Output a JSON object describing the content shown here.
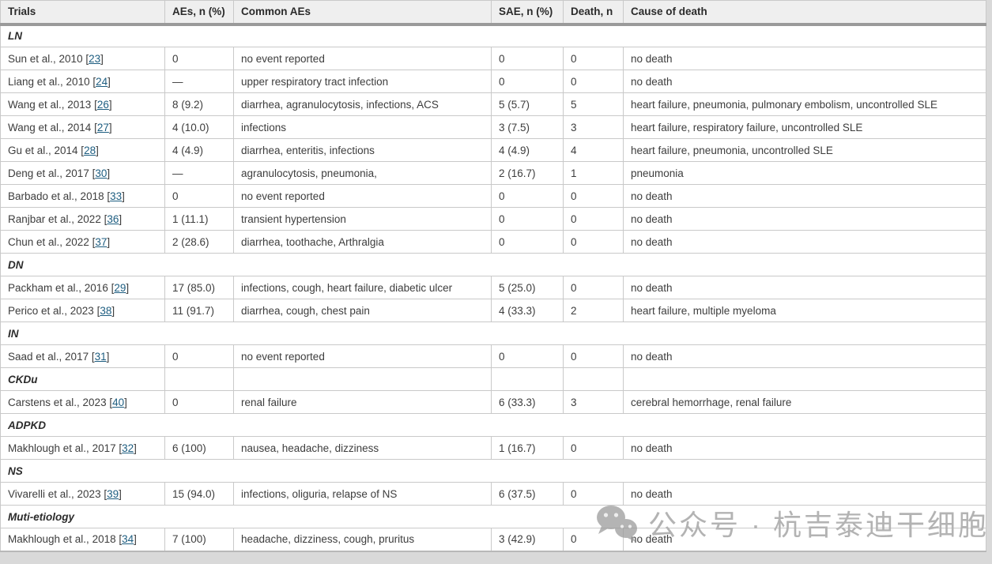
{
  "table": {
    "columns": [
      "Trials",
      "AEs, n (%)",
      "Common AEs",
      "SAE, n (%)",
      "Death, n",
      "Cause of death"
    ],
    "rows": [
      {
        "type": "group",
        "label": "LN"
      },
      {
        "type": "data",
        "trial": "Sun et al., 2010",
        "ref": "23",
        "aes": "0",
        "common": "no event reported",
        "sae": "0",
        "death": "0",
        "cause": "no death"
      },
      {
        "type": "data",
        "trial": "Liang et al., 2010",
        "ref": "24",
        "aes": "—",
        "common": "upper respiratory tract infection",
        "sae": "0",
        "death": "0",
        "cause": "no death"
      },
      {
        "type": "data",
        "trial": "Wang et al., 2013",
        "ref": "26",
        "aes": "8 (9.2)",
        "common": "diarrhea, agranulocytosis, infections, ACS",
        "sae": "5 (5.7)",
        "death": "5",
        "cause": "heart failure, pneumonia, pulmonary embolism, uncontrolled SLE"
      },
      {
        "type": "data",
        "trial": "Wang et al., 2014",
        "ref": "27",
        "aes": "4 (10.0)",
        "common": "infections",
        "sae": "3 (7.5)",
        "death": "3",
        "cause": "heart failure, respiratory failure, uncontrolled SLE"
      },
      {
        "type": "data",
        "trial": "Gu et al., 2014",
        "ref": "28",
        "aes": "4 (4.9)",
        "common": "diarrhea, enteritis, infections",
        "sae": "4 (4.9)",
        "death": "4",
        "cause": "heart failure, pneumonia, uncontrolled SLE"
      },
      {
        "type": "data",
        "trial": "Deng et al., 2017",
        "ref": "30",
        "aes": "—",
        "common": "agranulocytosis, pneumonia,",
        "sae": "2 (16.7)",
        "death": "1",
        "cause": "pneumonia"
      },
      {
        "type": "data",
        "trial": "Barbado et al., 2018",
        "ref": "33",
        "aes": "0",
        "common": "no event reported",
        "sae": "0",
        "death": "0",
        "cause": "no death"
      },
      {
        "type": "data",
        "trial": "Ranjbar et al., 2022",
        "ref": "36",
        "aes": "1 (11.1)",
        "common": "transient hypertension",
        "sae": "0",
        "death": "0",
        "cause": "no death"
      },
      {
        "type": "data",
        "trial": "Chun et al., 2022",
        "ref": "37",
        "aes": "2 (28.6)",
        "common": "diarrhea, toothache, Arthralgia",
        "sae": "0",
        "death": "0",
        "cause": "no death"
      },
      {
        "type": "group",
        "label": "DN"
      },
      {
        "type": "data",
        "trial": "Packham et al., 2016",
        "ref": "29",
        "aes": "17 (85.0)",
        "common": "infections, cough, heart failure, diabetic ulcer",
        "sae": "5 (25.0)",
        "death": "0",
        "cause": "no death"
      },
      {
        "type": "data",
        "trial": "Perico et al., 2023",
        "ref": "38",
        "aes": "11 (91.7)",
        "common": "diarrhea, cough, chest pain",
        "sae": "4 (33.3)",
        "death": "2",
        "cause": "heart failure, multiple myeloma"
      },
      {
        "type": "group",
        "label": "IN"
      },
      {
        "type": "data",
        "trial": "Saad et al., 2017",
        "ref": "31",
        "aes": "0",
        "common": "no event reported",
        "sae": "0",
        "death": "0",
        "cause": "no death"
      },
      {
        "type": "group-cells",
        "label": "CKDu"
      },
      {
        "type": "data",
        "trial": "Carstens et al., 2023",
        "ref": "40",
        "aes": "0",
        "common": "renal failure",
        "sae": "6 (33.3)",
        "death": "3",
        "cause": "cerebral hemorrhage, renal failure"
      },
      {
        "type": "group",
        "label": "ADPKD"
      },
      {
        "type": "data",
        "trial": "Makhlough et al., 2017",
        "ref": "32",
        "aes": "6 (100)",
        "common": "nausea, headache, dizziness",
        "sae": "1 (16.7)",
        "death": "0",
        "cause": "no death"
      },
      {
        "type": "group",
        "label": "NS"
      },
      {
        "type": "data",
        "trial": "Vivarelli et al., 2023",
        "ref": "39",
        "aes": "15 (94.0)",
        "common": "infections, oliguria, relapse of NS",
        "sae": "6 (37.5)",
        "death": "0",
        "cause": "no death"
      },
      {
        "type": "group",
        "label": "Muti-etiology"
      },
      {
        "type": "data",
        "trial": "Makhlough et al., 2018",
        "ref": "34",
        "aes": "7 (100)",
        "common": "headache, dizziness, cough, pruritus",
        "sae": "3 (42.9)",
        "death": "0",
        "cause": "no death"
      }
    ]
  },
  "watermark": {
    "icon": "wechat-icon",
    "text": "公众号 · 杭吉泰迪干细胞"
  },
  "colors": {
    "link": "#1d5d80",
    "header_bg": "#efefef",
    "header_rule": "#9a9a9a",
    "grid_line": "#c9c9c9",
    "body_text": "#3d3d3d",
    "watermark_gray": "#b3b3b3",
    "page_bg": "#d9d9d9"
  }
}
